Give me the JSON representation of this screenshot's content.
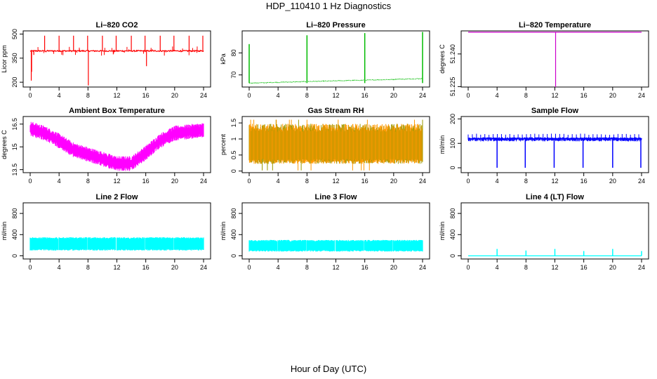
{
  "figure": {
    "title": "HDP_110410  1 Hz Diagnostics",
    "xlabel": "Hour of Day (UTC)"
  },
  "chart_data": [
    {
      "type": "line",
      "title": "Li–820 CO2",
      "xlabel": "",
      "ylabel": "Licor ppm",
      "color": "#ff0000",
      "xlim": [
        0,
        24
      ],
      "ylim": [
        170,
        520
      ],
      "xticks": [
        "0",
        "4",
        "8",
        "12",
        "16",
        "20",
        "24"
      ],
      "yticks": [
        200,
        350,
        500
      ],
      "series": [
        {
          "kind": "noisy",
          "x_start": 0,
          "x_end": 24,
          "base": 395,
          "amplitude": 8,
          "spikes": [
            {
              "x": 0.2,
              "y": 265
            },
            {
              "x": 0.15,
              "y": 210
            },
            {
              "x": 0.5,
              "y": 370
            },
            {
              "x": 2.0,
              "y": 490
            },
            {
              "x": 4.0,
              "y": 490
            },
            {
              "x": 6.0,
              "y": 490
            },
            {
              "x": 7.95,
              "y": 490
            },
            {
              "x": 8.05,
              "y": 180
            },
            {
              "x": 10.0,
              "y": 490
            },
            {
              "x": 11.9,
              "y": 490
            },
            {
              "x": 14.0,
              "y": 490
            },
            {
              "x": 15.9,
              "y": 490
            },
            {
              "x": 16.1,
              "y": 300
            },
            {
              "x": 18.0,
              "y": 490
            },
            {
              "x": 19.9,
              "y": 490
            },
            {
              "x": 22.0,
              "y": 490
            },
            {
              "x": 23.9,
              "y": 490
            }
          ]
        }
      ]
    },
    {
      "type": "line",
      "title": "Li–820 Pressure",
      "xlabel": "",
      "ylabel": "kPa",
      "color": "#00bb00",
      "xlim": [
        0,
        24
      ],
      "ylim": [
        64.5,
        90
      ],
      "xticks": [
        "0",
        "4",
        "8",
        "12",
        "16",
        "20",
        "24"
      ],
      "yticks": [
        70,
        80
      ],
      "series": [
        {
          "kind": "ramp",
          "x": [
            0,
            24
          ],
          "y": [
            66.3,
            68.3
          ],
          "amplitude": 0.3,
          "spikes": [
            {
              "x": 0.0,
              "y": 84
            },
            {
              "x": 8.0,
              "y": 88
            },
            {
              "x": 16.0,
              "y": 89
            },
            {
              "x": 24.0,
              "y": 89.5
            }
          ]
        }
      ]
    },
    {
      "type": "line",
      "title": "Li–820 Temperature",
      "xlabel": "",
      "ylabel": "degrees C",
      "color": "#cc00cc",
      "xlim": [
        0,
        24
      ],
      "ylim": [
        51.2248,
        51.2506
      ],
      "xticks": [
        "0",
        "4",
        "8",
        "12",
        "16",
        "20",
        "24"
      ],
      "yticks": [
        51.225,
        51.24
      ],
      "ytick_labels": [
        "51.225",
        "51.240"
      ],
      "series": [
        {
          "kind": "flat",
          "y": 51.25,
          "drop_x": 12.1,
          "drop_y": 51.2248
        }
      ]
    },
    {
      "type": "line",
      "title": "Ambient Box Temperature",
      "xlabel": "",
      "ylabel": "degrees C",
      "color": "#ff00ff",
      "xlim": [
        0,
        24
      ],
      "ylim": [
        13.3,
        17.0
      ],
      "xticks": [
        "0",
        "4",
        "8",
        "12",
        "16",
        "20",
        "24"
      ],
      "yticks": [
        13.5,
        15.0,
        16.5
      ],
      "series": [
        {
          "kind": "band",
          "x": [
            0,
            2,
            4,
            6,
            8,
            10,
            12,
            14,
            16,
            18,
            20,
            22,
            24
          ],
          "y": [
            16.2,
            15.9,
            15.4,
            14.8,
            14.5,
            14.2,
            13.9,
            13.9,
            14.6,
            15.4,
            15.9,
            16.0,
            16.1
          ],
          "amplitude": 0.35
        }
      ]
    },
    {
      "type": "line",
      "title": "Gas Stream RH",
      "xlabel": "",
      "ylabel": "percent",
      "color": "#ff9900",
      "color2": "#999900",
      "xlim": [
        0,
        24
      ],
      "ylim": [
        -0.05,
        1.7
      ],
      "xticks": [
        "0",
        "4",
        "8",
        "12",
        "16",
        "20",
        "24"
      ],
      "yticks": [
        0.0,
        0.5,
        1.0,
        1.5
      ],
      "series": [
        {
          "kind": "noiseband",
          "low": 0.3,
          "high": 1.3,
          "extreme_low": 0.02,
          "extreme_high": 1.6
        }
      ]
    },
    {
      "type": "line",
      "title": "Sample Flow",
      "xlabel": "",
      "ylabel": "ml/min",
      "color": "#0000ff",
      "xlim": [
        0,
        24
      ],
      "ylim": [
        -20,
        210
      ],
      "xticks": [
        "0",
        "4",
        "8",
        "12",
        "16",
        "20",
        "24"
      ],
      "yticks": [
        0,
        100,
        200
      ],
      "series": [
        {
          "kind": "sawband",
          "base": 120,
          "amplitude": 10,
          "drops": [
            {
              "x": 4.0,
              "y": 0
            },
            {
              "x": 7.9,
              "y": 0
            },
            {
              "x": 11.9,
              "y": 0
            },
            {
              "x": 15.9,
              "y": 0
            },
            {
              "x": 20.0,
              "y": 0
            },
            {
              "x": 23.9,
              "y": 0
            }
          ]
        }
      ]
    },
    {
      "type": "line",
      "title": "Line 2 Flow",
      "xlabel": "",
      "ylabel": "ml/min",
      "color": "#00ffff",
      "xlim": [
        0,
        24
      ],
      "ylim": [
        -60,
        1000
      ],
      "xticks": [
        "0",
        "4",
        "8",
        "12",
        "16",
        "20",
        "24"
      ],
      "yticks": [
        0,
        400,
        800
      ],
      "series": [
        {
          "kind": "block",
          "low": 100,
          "high": 350,
          "gaps": [
            3.9,
            7.9,
            11.9,
            15.9,
            19.9
          ]
        }
      ]
    },
    {
      "type": "line",
      "title": "Line 3 Flow",
      "xlabel": "",
      "ylabel": "ml/min",
      "color": "#00ffff",
      "xlim": [
        0,
        24
      ],
      "ylim": [
        -60,
        1000
      ],
      "xticks": [
        "0",
        "4",
        "8",
        "12",
        "16",
        "20",
        "24"
      ],
      "yticks": [
        0,
        400,
        800
      ],
      "series": [
        {
          "kind": "block",
          "low": 80,
          "high": 300,
          "gaps": [
            3.9,
            7.9,
            11.9,
            15.9,
            19.9
          ]
        }
      ]
    },
    {
      "type": "line",
      "title": "Line 4 (LT) Flow",
      "xlabel": "",
      "ylabel": "ml/min",
      "color": "#00ffff",
      "xlim": [
        0,
        24
      ],
      "ylim": [
        -60,
        1000
      ],
      "xticks": [
        "0",
        "4",
        "8",
        "12",
        "16",
        "20",
        "24"
      ],
      "yticks": [
        0,
        400,
        800
      ],
      "series": [
        {
          "kind": "flat_spikes",
          "y": 0,
          "spikes": [
            {
              "x": 4.0,
              "y": 130
            },
            {
              "x": 8.0,
              "y": 100
            },
            {
              "x": 12.0,
              "y": 130
            },
            {
              "x": 16.0,
              "y": 90
            },
            {
              "x": 20.0,
              "y": 130
            },
            {
              "x": 24.0,
              "y": 90
            }
          ]
        }
      ]
    }
  ]
}
